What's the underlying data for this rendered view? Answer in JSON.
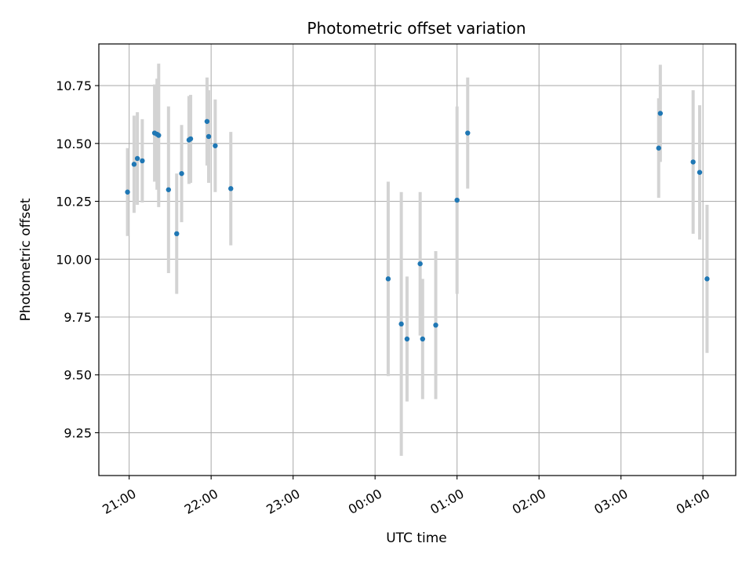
{
  "chart_data": {
    "type": "scatter",
    "title": "Photometric offset variation",
    "xlabel": "UTC time",
    "ylabel": "Photometric offset",
    "grid": true,
    "x_unit": "hours since 21:00 UTC",
    "xlim": [
      -0.37,
      7.4
    ],
    "ylim": [
      9.065,
      10.93
    ],
    "x_ticks": [
      {
        "value": 0,
        "label": "21:00"
      },
      {
        "value": 1,
        "label": "22:00"
      },
      {
        "value": 2,
        "label": "23:00"
      },
      {
        "value": 3,
        "label": "00:00"
      },
      {
        "value": 4,
        "label": "01:00"
      },
      {
        "value": 5,
        "label": "02:00"
      },
      {
        "value": 6,
        "label": "03:00"
      },
      {
        "value": 7,
        "label": "04:00"
      }
    ],
    "y_ticks": [
      {
        "value": 9.25,
        "label": "9.25"
      },
      {
        "value": 9.5,
        "label": "9.50"
      },
      {
        "value": 9.75,
        "label": "9.75"
      },
      {
        "value": 10.0,
        "label": "10.00"
      },
      {
        "value": 10.25,
        "label": "10.25"
      },
      {
        "value": 10.5,
        "label": "10.50"
      },
      {
        "value": 10.75,
        "label": "10.75"
      }
    ],
    "series": [
      {
        "name": "Photometric offset",
        "marker_color": "#1f77b4",
        "errorbar_color": "#d3d3d3",
        "points": [
          {
            "x": -0.02,
            "y": 10.29,
            "err": 0.19
          },
          {
            "x": 0.06,
            "y": 10.41,
            "err": 0.21
          },
          {
            "x": 0.1,
            "y": 10.435,
            "err": 0.2
          },
          {
            "x": 0.16,
            "y": 10.425,
            "err": 0.18
          },
          {
            "x": 0.31,
            "y": 10.545,
            "err": 0.21
          },
          {
            "x": 0.34,
            "y": 10.54,
            "err": 0.24
          },
          {
            "x": 0.36,
            "y": 10.535,
            "err": 0.31
          },
          {
            "x": 0.48,
            "y": 10.3,
            "err": 0.36
          },
          {
            "x": 0.58,
            "y": 10.11,
            "err": 0.26
          },
          {
            "x": 0.64,
            "y": 10.37,
            "err": 0.21
          },
          {
            "x": 0.73,
            "y": 10.515,
            "err": 0.19
          },
          {
            "x": 0.75,
            "y": 10.52,
            "err": 0.19
          },
          {
            "x": 0.95,
            "y": 10.595,
            "err": 0.19
          },
          {
            "x": 0.97,
            "y": 10.53,
            "err": 0.2
          },
          {
            "x": 1.05,
            "y": 10.49,
            "err": 0.2
          },
          {
            "x": 1.24,
            "y": 10.305,
            "err": 0.245
          },
          {
            "x": 3.16,
            "y": 9.915,
            "err": 0.42
          },
          {
            "x": 3.32,
            "y": 9.72,
            "err": 0.57
          },
          {
            "x": 3.39,
            "y": 9.655,
            "err": 0.27
          },
          {
            "x": 3.55,
            "y": 9.98,
            "err": 0.31
          },
          {
            "x": 3.58,
            "y": 9.655,
            "err": 0.26
          },
          {
            "x": 3.74,
            "y": 9.715,
            "err": 0.32
          },
          {
            "x": 4.0,
            "y": 10.255,
            "err": 0.405
          },
          {
            "x": 4.13,
            "y": 10.545,
            "err": 0.24
          },
          {
            "x": 6.46,
            "y": 10.48,
            "err": 0.215
          },
          {
            "x": 6.48,
            "y": 10.63,
            "err": 0.21
          },
          {
            "x": 6.88,
            "y": 10.42,
            "err": 0.31
          },
          {
            "x": 6.96,
            "y": 10.375,
            "err": 0.29
          },
          {
            "x": 7.05,
            "y": 9.915,
            "err": 0.32
          }
        ]
      }
    ]
  }
}
